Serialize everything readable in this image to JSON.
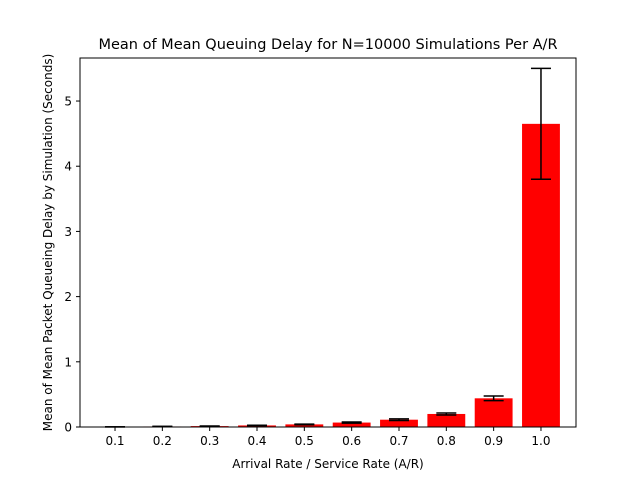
{
  "chart_data": {
    "type": "bar",
    "title": "Mean of Mean Queuing Delay for N=10000 Simulations Per A/R",
    "xlabel": "Arrival Rate / Service Rate (A/R)",
    "ylabel": "Mean of Mean Packet Queueing Delay by Simulation (Seconds)",
    "categories": [
      "0.1",
      "0.2",
      "0.3",
      "0.4",
      "0.5",
      "0.6",
      "0.7",
      "0.8",
      "0.9",
      "1.0"
    ],
    "values": [
      0.002,
      0.008,
      0.014,
      0.024,
      0.04,
      0.068,
      0.112,
      0.2,
      0.44,
      4.65
    ],
    "error": [
      0.0005,
      0.001,
      0.002,
      0.003,
      0.005,
      0.008,
      0.012,
      0.015,
      0.035,
      0.85
    ],
    "ylim": [
      0,
      5.66
    ],
    "yticks": [
      "0",
      "1",
      "2",
      "3",
      "4",
      "5"
    ],
    "bar_color": "#ff0000",
    "errorbar_color": "#000000",
    "grid": false
  }
}
